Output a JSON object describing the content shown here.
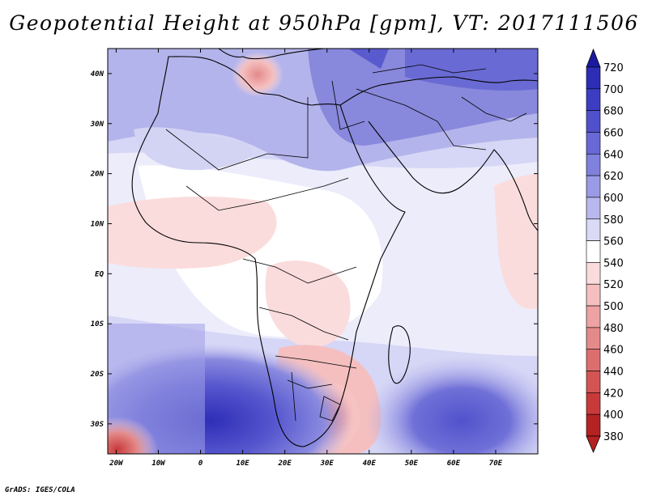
{
  "title": "Geopotential Height at 950hPa [gpm], VT: 2017111506",
  "footer": "GrADS: IGES/COLA",
  "map": {
    "variable": "Geopotential Height",
    "level": "950hPa",
    "units": "gpm",
    "valid_time": "2017111506",
    "lon_range": [
      -22,
      80
    ],
    "lat_range": [
      -36,
      45
    ],
    "lon_ticks": [
      {
        "value": -20,
        "label": "20W"
      },
      {
        "value": -10,
        "label": "10W"
      },
      {
        "value": 0,
        "label": "0"
      },
      {
        "value": 10,
        "label": "10E"
      },
      {
        "value": 20,
        "label": "20E"
      },
      {
        "value": 30,
        "label": "30E"
      },
      {
        "value": 40,
        "label": "40E"
      },
      {
        "value": 50,
        "label": "50E"
      },
      {
        "value": 60,
        "label": "60E"
      },
      {
        "value": 70,
        "label": "70E"
      }
    ],
    "lat_ticks": [
      {
        "value": 40,
        "label": "40N"
      },
      {
        "value": 30,
        "label": "30N"
      },
      {
        "value": 20,
        "label": "20N"
      },
      {
        "value": 10,
        "label": "10N"
      },
      {
        "value": 0,
        "label": "EQ"
      },
      {
        "value": -10,
        "label": "10S"
      },
      {
        "value": -20,
        "label": "20S"
      },
      {
        "value": -30,
        "label": "30S"
      }
    ]
  },
  "colorbar": {
    "levels": [
      "720",
      "700",
      "680",
      "660",
      "640",
      "620",
      "600",
      "580",
      "560",
      "540",
      "520",
      "500",
      "480",
      "460",
      "440",
      "420",
      "400",
      "380"
    ],
    "colors": [
      "#1a1aa0",
      "#2d2db5",
      "#3d3dc4",
      "#5050cc",
      "#6868d6",
      "#8080dd",
      "#9a9ae6",
      "#b8b8ee",
      "#dadaf7",
      "#ffffff",
      "#fbdcdc",
      "#f5bfbf",
      "#eda3a3",
      "#e48a8a",
      "#dd6e6e",
      "#d45454",
      "#c83a3a",
      "#b52222"
    ]
  },
  "colors": {
    "ocean_mid": "#dadaf7",
    "land_outline": "#000000"
  }
}
